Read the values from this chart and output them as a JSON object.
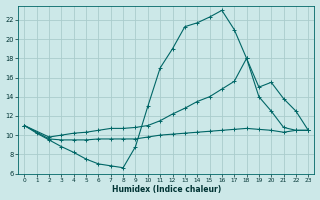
{
  "xlabel": "Humidex (Indice chaleur)",
  "bg_color": "#cce8e8",
  "grid_color": "#aacccc",
  "line_color": "#006666",
  "xlim": [
    -0.5,
    23.5
  ],
  "ylim": [
    6,
    23.5
  ],
  "yticks": [
    6,
    8,
    10,
    12,
    14,
    16,
    18,
    20,
    22
  ],
  "xticks": [
    0,
    1,
    2,
    3,
    4,
    5,
    6,
    7,
    8,
    9,
    10,
    11,
    12,
    13,
    14,
    15,
    16,
    17,
    18,
    19,
    20,
    21,
    22,
    23
  ],
  "line1_x": [
    0,
    1,
    2,
    3,
    4,
    5,
    6,
    7,
    8,
    9,
    10,
    11,
    12,
    13,
    14,
    15,
    16,
    17,
    18,
    19,
    20,
    21,
    22,
    23
  ],
  "line1_y": [
    11.0,
    10.2,
    9.5,
    8.8,
    8.2,
    7.5,
    7.0,
    6.8,
    6.6,
    8.8,
    13.0,
    17.0,
    19.0,
    21.3,
    21.7,
    22.3,
    23.0,
    21.0,
    18.0,
    14.0,
    12.5,
    10.8,
    10.5,
    10.5
  ],
  "line2_x": [
    0,
    2,
    3,
    4,
    5,
    6,
    7,
    8,
    9,
    10,
    11,
    12,
    13,
    14,
    15,
    16,
    17,
    18,
    19,
    20,
    21,
    22,
    23
  ],
  "line2_y": [
    11.0,
    9.8,
    10.0,
    10.2,
    10.3,
    10.5,
    10.7,
    10.7,
    10.8,
    11.0,
    11.5,
    12.2,
    12.8,
    13.5,
    14.0,
    14.8,
    15.6,
    18.0,
    15.0,
    15.5,
    13.8,
    12.5,
    10.5
  ],
  "line3_x": [
    0,
    2,
    3,
    4,
    5,
    6,
    7,
    8,
    9,
    10,
    11,
    12,
    13,
    14,
    15,
    16,
    17,
    18,
    19,
    20,
    21,
    22,
    23
  ],
  "line3_y": [
    11.0,
    9.6,
    9.5,
    9.5,
    9.5,
    9.6,
    9.6,
    9.6,
    9.6,
    9.8,
    10.0,
    10.1,
    10.2,
    10.3,
    10.4,
    10.5,
    10.6,
    10.7,
    10.6,
    10.5,
    10.3,
    10.5,
    10.5
  ]
}
